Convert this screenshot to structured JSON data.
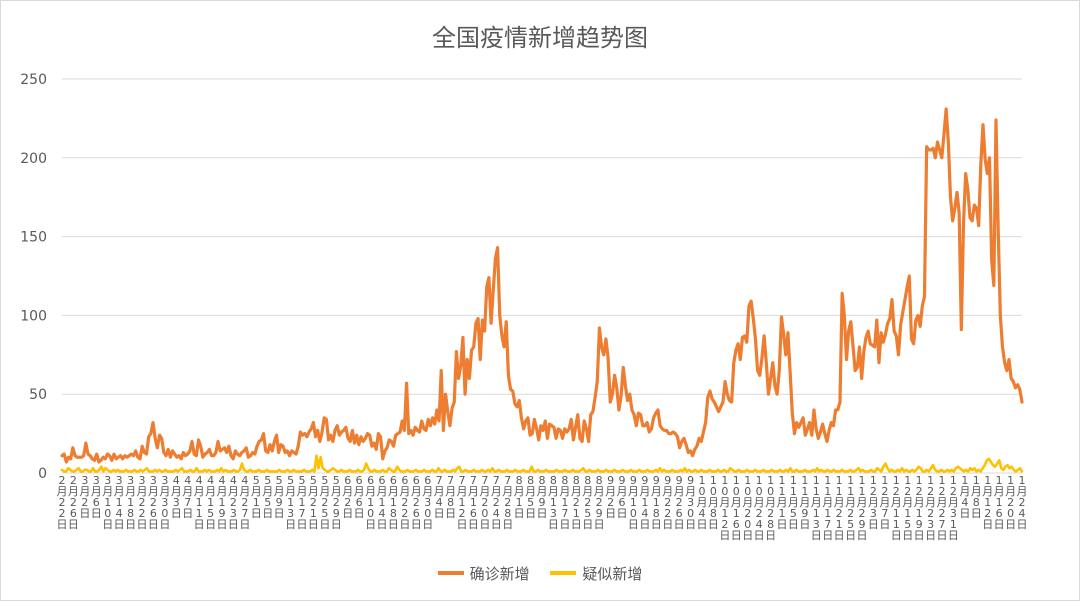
{
  "chart_data": {
    "type": "line",
    "title": "全国疫情新增趋势图",
    "ylim": [
      0,
      250
    ],
    "yticks": [
      0,
      50,
      100,
      150,
      200,
      250
    ],
    "grid": true,
    "legend_position": "bottom",
    "x_tick_labels": [
      "2月22日",
      "2月26日",
      "3月2日",
      "3月6日",
      "3月10日",
      "3月14日",
      "3月18日",
      "3月22日",
      "3月26日",
      "3月30日",
      "4月3日",
      "4月7日",
      "4月11日",
      "4月15日",
      "4月19日",
      "4月23日",
      "4月27日",
      "5月1日",
      "5月5日",
      "5月9日",
      "5月13日",
      "5月17日",
      "5月21日",
      "5月25日",
      "5月29日",
      "6月2日",
      "6月6日",
      "6月10日",
      "6月14日",
      "6月18日",
      "6月22日",
      "6月26日",
      "6月30日",
      "7月4日",
      "7月8日",
      "7月12日",
      "7月16日",
      "7月20日",
      "7月24日",
      "7月28日",
      "8月1日",
      "8月5日",
      "8月9日",
      "8月13日",
      "8月17日",
      "8月21日",
      "8月25日",
      "8月29日",
      "9月2日",
      "9月6日",
      "9月10日",
      "9月14日",
      "9月18日",
      "9月22日",
      "9月26日",
      "9月30日",
      "10月4日",
      "10月8日",
      "10月12日",
      "10月16日",
      "10月20日",
      "10月24日",
      "10月28日",
      "11月1日",
      "11月5日",
      "11月9日",
      "11月13日",
      "11月17日",
      "11月21日",
      "11月25日",
      "11月29日",
      "12月3日",
      "12月7日",
      "12月11日",
      "12月15日",
      "12月19日",
      "12月23日",
      "12月27日",
      "12月31日",
      "1月4日",
      "1月8日",
      "1月12日",
      "1月16日",
      "1月20日",
      "1月24日"
    ],
    "series": [
      {
        "name": "确诊新增",
        "color": "#ED7D31",
        "values": [
          11,
          12,
          7,
          10,
          9,
          16,
          11,
          10,
          10,
          10,
          11,
          19,
          12,
          11,
          9,
          8,
          12,
          7,
          8,
          10,
          9,
          12,
          11,
          8,
          12,
          9,
          10,
          11,
          9,
          11,
          10,
          11,
          12,
          11,
          14,
          10,
          9,
          17,
          13,
          12,
          23,
          25,
          32,
          22,
          16,
          24,
          22,
          13,
          11,
          15,
          10,
          14,
          12,
          10,
          11,
          9,
          13,
          11,
          12,
          14,
          20,
          12,
          11,
          21,
          17,
          10,
          12,
          13,
          15,
          11,
          11,
          13,
          20,
          14,
          15,
          16,
          13,
          17,
          11,
          9,
          14,
          12,
          11,
          13,
          14,
          16,
          10,
          11,
          13,
          12,
          17,
          20,
          21,
          25,
          14,
          13,
          18,
          14,
          20,
          24,
          13,
          18,
          17,
          13,
          14,
          11,
          14,
          13,
          12,
          17,
          26,
          24,
          25,
          23,
          26,
          28,
          32,
          23,
          27,
          20,
          26,
          35,
          34,
          21,
          24,
          20,
          27,
          30,
          24,
          26,
          27,
          29,
          22,
          20,
          27,
          19,
          24,
          18,
          23,
          20,
          22,
          25,
          24,
          17,
          19,
          15,
          25,
          23,
          9,
          14,
          16,
          21,
          20,
          17,
          24,
          25,
          26,
          33,
          27,
          57,
          25,
          27,
          24,
          29,
          27,
          26,
          33,
          28,
          27,
          34,
          30,
          35,
          31,
          40,
          33,
          65,
          27,
          50,
          39,
          30,
          41,
          45,
          77,
          60,
          68,
          86,
          50,
          72,
          60,
          78,
          80,
          95,
          98,
          72,
          97,
          90,
          118,
          124,
          95,
          116,
          136,
          143,
          100,
          87,
          80,
          96,
          62,
          53,
          52,
          44,
          42,
          46,
          35,
          28,
          33,
          35,
          24,
          25,
          34,
          28,
          21,
          30,
          27,
          33,
          22,
          31,
          30,
          29,
          22,
          28,
          27,
          22,
          28,
          26,
          28,
          34,
          21,
          29,
          37,
          22,
          20,
          33,
          28,
          20,
          37,
          39,
          48,
          58,
          92,
          80,
          75,
          85,
          73,
          45,
          50,
          62,
          54,
          40,
          49,
          67,
          55,
          46,
          50,
          40,
          37,
          30,
          38,
          37,
          30,
          30,
          32,
          26,
          28,
          35,
          38,
          40,
          30,
          28,
          27,
          27,
          25,
          25,
          26,
          25,
          23,
          16,
          20,
          22,
          18,
          13,
          14,
          11,
          15,
          17,
          22,
          20,
          26,
          32,
          48,
          52,
          47,
          45,
          42,
          39,
          42,
          45,
          58,
          50,
          46,
          45,
          70,
          78,
          82,
          72,
          86,
          87,
          83,
          106,
          109,
          98,
          85,
          65,
          62,
          73,
          87,
          70,
          50,
          60,
          70,
          55,
          50,
          65,
          99,
          88,
          75,
          89,
          64,
          38,
          25,
          32,
          29,
          32,
          35,
          24,
          28,
          32,
          24,
          40,
          28,
          22,
          26,
          31,
          25,
          20,
          27,
          32,
          30,
          40,
          40,
          45,
          114,
          100,
          72,
          90,
          96,
          81,
          65,
          67,
          80,
          60,
          77,
          86,
          90,
          82,
          81,
          80,
          97,
          70,
          89,
          83,
          88,
          95,
          98,
          110,
          90,
          87,
          75,
          94,
          102,
          110,
          118,
          125,
          85,
          82,
          97,
          100,
          93,
          106,
          112,
          207,
          205,
          205,
          206,
          200,
          210,
          205,
          200,
          215,
          231,
          210,
          175,
          160,
          168,
          178,
          165,
          91,
          158,
          190,
          180,
          162,
          160,
          170,
          168,
          157,
          196,
          221,
          199,
          190,
          200,
          135,
          119,
          224,
          155,
          100,
          80,
          70,
          65,
          72,
          60,
          58,
          54,
          56,
          53,
          45
        ]
      },
      {
        "name": "疑似新增",
        "color": "#FFC000",
        "values": [
          2,
          1,
          1,
          3,
          2,
          1,
          1,
          2,
          3,
          1,
          1,
          2,
          2,
          1,
          1,
          3,
          1,
          1,
          2,
          4,
          1,
          3,
          2,
          1,
          1,
          2,
          1,
          2,
          1,
          1,
          1,
          2,
          1,
          1,
          1,
          2,
          1,
          1,
          2,
          1,
          2,
          3,
          1,
          1,
          1,
          2,
          1,
          2,
          1,
          1,
          2,
          1,
          1,
          1,
          1,
          2,
          1,
          2,
          3,
          1,
          1,
          1,
          2,
          1,
          1,
          3,
          1,
          1,
          1,
          2,
          1,
          2,
          1,
          1,
          1,
          2,
          1,
          3,
          1,
          2,
          1,
          1,
          1,
          2,
          1,
          1,
          2,
          6,
          2,
          1,
          1,
          2,
          1,
          1,
          1,
          2,
          1,
          1,
          1,
          2,
          1,
          1,
          1,
          1,
          1,
          2,
          1,
          1,
          1,
          2,
          1,
          1,
          2,
          1,
          1,
          1,
          1,
          2,
          1,
          1,
          1,
          2,
          1,
          11,
          3,
          10,
          3,
          2,
          1,
          1,
          2,
          3,
          2,
          1,
          1,
          2,
          1,
          1,
          1,
          2,
          1,
          1,
          1,
          2,
          1,
          1,
          2,
          6,
          3,
          1,
          1,
          2,
          1,
          1,
          1,
          2,
          1,
          1,
          3,
          2,
          1,
          1,
          4,
          2,
          1,
          1,
          1,
          2,
          1,
          1,
          1,
          2,
          1,
          1,
          1,
          2,
          1,
          1,
          1,
          2,
          1,
          1,
          3,
          1,
          1,
          2,
          1,
          1,
          1,
          2,
          1,
          3,
          4,
          1,
          1,
          2,
          1,
          1,
          1,
          2,
          1,
          1,
          1,
          2,
          1,
          1,
          2,
          1,
          3,
          1,
          1,
          2,
          1,
          1,
          1,
          2,
          1,
          1,
          1,
          2,
          1,
          1,
          1,
          2,
          1,
          1,
          1,
          4,
          1,
          1,
          2,
          1,
          1,
          1,
          2,
          1,
          1,
          1,
          1,
          2,
          1,
          1,
          1,
          2,
          1,
          1,
          1,
          2,
          1,
          1,
          1,
          2,
          3,
          1,
          1,
          2,
          1,
          1,
          1,
          2,
          1,
          1,
          1,
          2,
          1,
          1,
          1,
          2,
          1,
          1,
          1,
          2,
          1,
          1,
          1,
          2,
          1,
          1,
          1,
          2,
          1,
          1,
          1,
          2,
          1,
          1,
          1,
          2,
          1,
          3,
          1,
          2,
          1,
          1,
          1,
          2,
          1,
          1,
          1,
          2,
          1,
          3,
          1,
          2,
          1,
          1,
          2,
          1,
          1,
          2,
          1,
          1,
          1,
          2,
          1,
          1,
          1,
          2,
          1,
          1,
          2,
          1,
          1,
          3,
          2,
          1,
          1,
          2,
          1,
          1,
          1,
          2,
          1,
          1,
          1,
          2,
          1,
          1,
          1,
          2,
          1,
          1,
          1,
          2,
          1,
          1,
          1,
          2,
          1,
          1,
          2,
          1,
          3,
          1,
          1,
          2,
          1,
          1,
          1,
          2,
          1,
          1,
          1,
          2,
          1,
          3,
          1,
          2,
          1,
          1,
          2,
          1,
          1,
          2,
          1,
          1,
          1,
          2,
          1,
          1,
          1,
          2,
          1,
          1,
          2,
          3,
          1,
          2,
          1,
          1,
          1,
          2,
          1,
          1,
          3,
          2,
          1,
          4,
          6,
          3,
          1,
          2,
          1,
          1,
          2,
          1,
          3,
          1,
          2,
          1,
          1,
          2,
          1,
          2,
          4,
          3,
          1,
          1,
          2,
          1,
          3,
          5,
          2,
          1,
          1,
          2,
          1,
          1,
          2,
          1,
          2,
          1,
          3,
          4,
          3,
          2,
          1,
          2,
          1,
          3,
          2,
          3,
          1,
          2,
          1,
          3,
          5,
          8,
          9,
          7,
          5,
          4,
          6,
          8,
          3,
          2,
          4,
          5,
          3,
          4,
          2,
          1,
          2,
          3,
          1
        ]
      }
    ]
  }
}
